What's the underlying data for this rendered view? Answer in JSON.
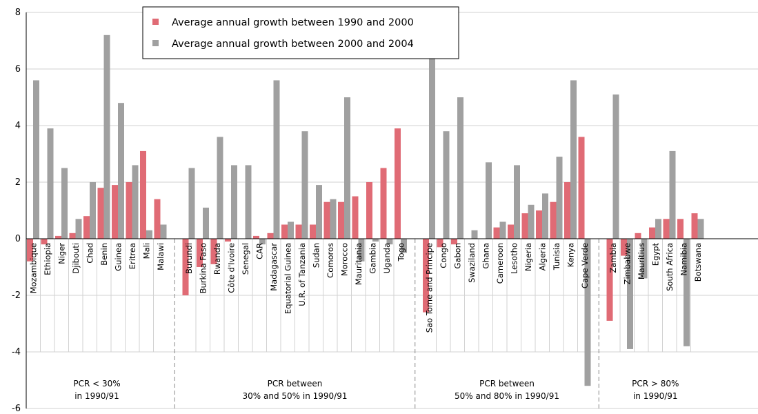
{
  "chart_data": {
    "type": "bar",
    "ylim": [
      -6,
      8
    ],
    "yticks": [
      8,
      6,
      4,
      2,
      0,
      -2,
      -4,
      -6
    ],
    "grid": true,
    "legend_position": "top-center",
    "colors": {
      "series1": "#e06b75",
      "series2": "#a0a0a0"
    },
    "series": [
      {
        "name": "Average annual growth between 1990 and 2000",
        "color": "#e06b75"
      },
      {
        "name": "Average annual growth between 2000 and 2004",
        "color": "#a0a0a0"
      }
    ],
    "groups": [
      {
        "label_line1": "PCR < 30%",
        "label_line2": "in 1990/91",
        "countries": [
          {
            "name": "Mozambique",
            "v1990": -0.8,
            "v2000": 5.6
          },
          {
            "name": "Ethiopia",
            "v1990": -0.2,
            "v2000": 3.9
          },
          {
            "name": "Niger",
            "v1990": 0.1,
            "v2000": 2.5
          },
          {
            "name": "Djibouti",
            "v1990": 0.2,
            "v2000": 0.7
          },
          {
            "name": "Chad",
            "v1990": 0.8,
            "v2000": 2.0
          },
          {
            "name": "Benin",
            "v1990": 1.8,
            "v2000": 7.2
          },
          {
            "name": "Guinea",
            "v1990": 1.9,
            "v2000": 4.8
          },
          {
            "name": "Eritrea",
            "v1990": 2.0,
            "v2000": 2.6
          },
          {
            "name": "Mali",
            "v1990": 3.1,
            "v2000": 0.3
          },
          {
            "name": "Malawi",
            "v1990": 1.4,
            "v2000": 0.5
          }
        ]
      },
      {
        "label_line1": "PCR between",
        "label_line2": "30% and 50% in 1990/91",
        "countries": [
          {
            "name": "Burundi",
            "v1990": -2.0,
            "v2000": 2.5
          },
          {
            "name": "Burkina Faso",
            "v1990": -1.0,
            "v2000": 1.1
          },
          {
            "name": "Rwanda",
            "v1990": -0.9,
            "v2000": 3.6
          },
          {
            "name": "Côte d'Ivoire",
            "v1990": -0.1,
            "v2000": 2.6
          },
          {
            "name": "Senegal",
            "v1990": 0.0,
            "v2000": 2.6
          },
          {
            "name": "CAR",
            "v1990": 0.1,
            "v2000": -0.2
          },
          {
            "name": "Madagascar",
            "v1990": 0.2,
            "v2000": 5.6
          },
          {
            "name": "Equatorial Guinea",
            "v1990": 0.5,
            "v2000": 0.6
          },
          {
            "name": "U.R. of Tanzania",
            "v1990": 0.5,
            "v2000": 3.8
          },
          {
            "name": "Sudan",
            "v1990": 0.5,
            "v2000": 1.9
          },
          {
            "name": "Comoros",
            "v1990": 1.3,
            "v2000": 1.4
          },
          {
            "name": "Morocco",
            "v1990": 1.3,
            "v2000": 5.0
          },
          {
            "name": "Mauritania",
            "v1990": 1.5,
            "v2000": -0.8
          },
          {
            "name": "Gambia",
            "v1990": 2.0,
            "v2000": -0.1
          },
          {
            "name": "Uganda",
            "v1990": 2.5,
            "v2000": -0.2
          },
          {
            "name": "Togo",
            "v1990": 3.9,
            "v2000": -0.5
          }
        ]
      },
      {
        "label_line1": "PCR between",
        "label_line2": "50% and 80% in 1990/91",
        "countries": [
          {
            "name": "Sao Tome and Principe",
            "v1990": -2.6,
            "v2000": 7.6
          },
          {
            "name": "Congo",
            "v1990": -0.3,
            "v2000": 3.8
          },
          {
            "name": "Gabon",
            "v1990": -0.2,
            "v2000": 5.0
          },
          {
            "name": "Swaziland",
            "v1990": 0.0,
            "v2000": 0.3
          },
          {
            "name": "Ghana",
            "v1990": 0.0,
            "v2000": 2.7
          },
          {
            "name": "Cameroon",
            "v1990": 0.4,
            "v2000": 0.6
          },
          {
            "name": "Lesotho",
            "v1990": 0.5,
            "v2000": 2.6
          },
          {
            "name": "Nigeria",
            "v1990": 0.9,
            "v2000": 1.2
          },
          {
            "name": "Algeria",
            "v1990": 1.0,
            "v2000": 1.6
          },
          {
            "name": "Tunisia",
            "v1990": 1.3,
            "v2000": 2.9
          },
          {
            "name": "Kenya",
            "v1990": 2.0,
            "v2000": 5.6
          },
          {
            "name": "Cape Verde",
            "v1990": 3.6,
            "v2000": -5.2
          }
        ]
      },
      {
        "label_line1": "PCR > 80%",
        "label_line2": "in 1990/91",
        "countries": [
          {
            "name": "Zambia",
            "v1990": -2.9,
            "v2000": 5.1
          },
          {
            "name": "Zimbabwe",
            "v1990": -0.6,
            "v2000": -3.9
          },
          {
            "name": "Mauritius",
            "v1990": 0.2,
            "v2000": -1.4
          },
          {
            "name": "Egypt",
            "v1990": 0.4,
            "v2000": 0.7
          },
          {
            "name": "South Africa",
            "v1990": 0.7,
            "v2000": 3.1
          },
          {
            "name": "Namibia",
            "v1990": 0.7,
            "v2000": -3.8
          },
          {
            "name": "Botswana",
            "v1990": 0.9,
            "v2000": 0.7
          }
        ]
      }
    ]
  }
}
